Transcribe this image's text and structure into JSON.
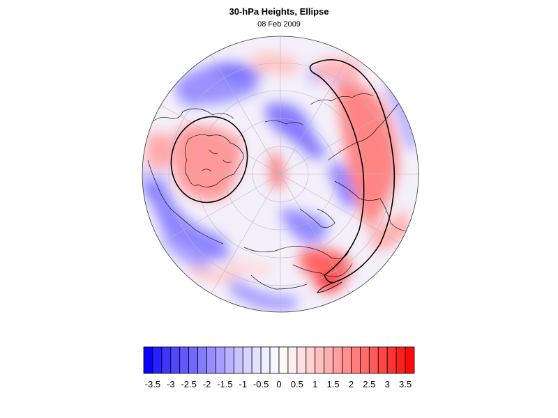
{
  "chart_data": {
    "type": "heatmap",
    "title": "30-hPa Heights, Ellipse",
    "subtitle": "08 Feb 2009",
    "projection": "polar stereographic, Northern Hemisphere",
    "colorbar": {
      "orientation": "horizontal",
      "levels": [
        -3.75,
        -3.5,
        -3.25,
        -3,
        -2.75,
        -2.5,
        -2.25,
        -2,
        -1.75,
        -1.5,
        -1.25,
        -1,
        -0.75,
        -0.5,
        -0.25,
        0,
        0.25,
        0.5,
        0.75,
        1,
        1.25,
        1.5,
        1.75,
        2,
        2.25,
        2.5,
        2.75,
        3,
        3.25,
        3.5,
        3.75
      ],
      "tick_labels": [
        "-3.5",
        "-3",
        "-2.5",
        "-2",
        "-1.5",
        "-1",
        "-0.5",
        "0",
        "0.5",
        "1",
        "1.5",
        "2",
        "2.5",
        "3",
        "3.5"
      ],
      "tick_values": [
        -3.5,
        -3,
        -2.5,
        -2,
        -1.5,
        -1,
        -0.5,
        0,
        0.5,
        1,
        1.5,
        2,
        2.5,
        3,
        3.5
      ],
      "colors": [
        "#0a00ff",
        "#2a20ff",
        "#3f35ff",
        "#5247ff",
        "#6358ff",
        "#7469ff",
        "#857bff",
        "#968dff",
        "#a79fff",
        "#b8b2ff",
        "#c8c4ff",
        "#d7d4ff",
        "#e4e2ff",
        "#efeeff",
        "#f8f7ff",
        "#fff8f8",
        "#ffeeee",
        "#ffe0e0",
        "#ffd1d1",
        "#ffc1c1",
        "#ffb0b0",
        "#ff9f9f",
        "#ff8e8e",
        "#ff7d7d",
        "#ff6b6b",
        "#ff5959",
        "#ff4646",
        "#ff3333",
        "#ff1f1f",
        "#ff0a0a"
      ]
    },
    "overlays": [
      "ellipse contour (west)",
      "ellipse contour (east)",
      "coastlines",
      "lat/lon grid"
    ]
  }
}
